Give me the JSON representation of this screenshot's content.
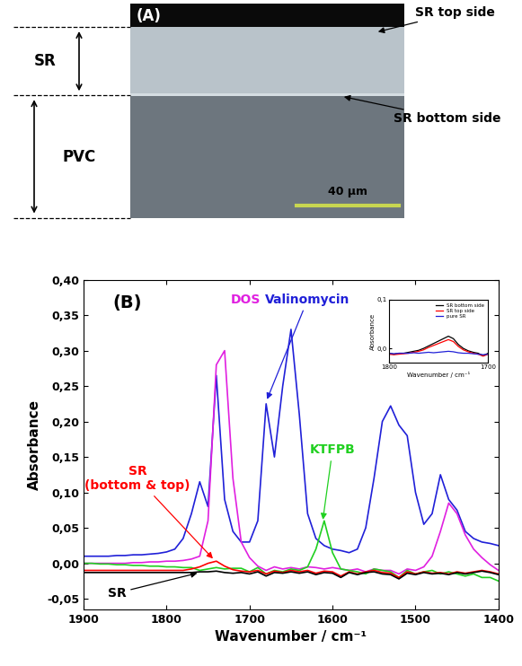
{
  "panel_a": {
    "label": "(A)",
    "layers": [
      "SR",
      "PVC"
    ],
    "callouts": [
      "SR top side",
      "SR bottom side"
    ],
    "scale_bar": "40 µm"
  },
  "chart_data": [
    {
      "type": "line",
      "title": "(B)",
      "x_label": "Wavenumber / cm⁻¹",
      "y_label": "Absorbance",
      "x": [
        1900,
        1890,
        1880,
        1870,
        1860,
        1850,
        1840,
        1830,
        1820,
        1810,
        1800,
        1790,
        1780,
        1770,
        1760,
        1750,
        1740,
        1730,
        1720,
        1710,
        1700,
        1690,
        1680,
        1670,
        1660,
        1650,
        1640,
        1630,
        1620,
        1610,
        1600,
        1590,
        1580,
        1570,
        1560,
        1550,
        1540,
        1530,
        1520,
        1510,
        1500,
        1490,
        1480,
        1470,
        1460,
        1450,
        1440,
        1430,
        1420,
        1410,
        1400
      ],
      "xlim": [
        1900,
        1400
      ],
      "xticks": [
        1900,
        1800,
        1700,
        1600,
        1500,
        1400
      ],
      "ylim": [
        -0.065,
        0.4
      ],
      "yticks": [
        {
          "value": -0.05,
          "label": "-0,05"
        },
        {
          "value": 0.0,
          "label": "0,00"
        },
        {
          "value": 0.05,
          "label": "0,05"
        },
        {
          "value": 0.1,
          "label": "0,10"
        },
        {
          "value": 0.15,
          "label": "0,15"
        },
        {
          "value": 0.2,
          "label": "0,20"
        },
        {
          "value": 0.25,
          "label": "0,25"
        },
        {
          "value": 0.3,
          "label": "0,30"
        },
        {
          "value": 0.35,
          "label": "0,35"
        },
        {
          "value": 0.4,
          "label": "0,40"
        }
      ],
      "series": [
        {
          "name": "Valinomycin",
          "color": "#2020d8",
          "values": [
            0.01,
            0.01,
            0.01,
            0.01,
            0.011,
            0.011,
            0.012,
            0.012,
            0.013,
            0.014,
            0.016,
            0.02,
            0.035,
            0.07,
            0.115,
            0.08,
            0.265,
            0.09,
            0.045,
            0.03,
            0.03,
            0.06,
            0.225,
            0.15,
            0.25,
            0.33,
            0.21,
            0.07,
            0.035,
            0.025,
            0.02,
            0.018,
            0.015,
            0.02,
            0.05,
            0.12,
            0.2,
            0.222,
            0.195,
            0.18,
            0.1,
            0.055,
            0.07,
            0.125,
            0.09,
            0.075,
            0.045,
            0.035,
            0.03,
            0.028,
            0.025
          ]
        },
        {
          "name": "DOS",
          "color": "#e020e0",
          "values": [
            0.0,
            0.0,
            0.0,
            0.0,
            0.0,
            0.0,
            0.001,
            0.001,
            0.002,
            0.002,
            0.003,
            0.003,
            0.004,
            0.006,
            0.01,
            0.06,
            0.28,
            0.3,
            0.12,
            0.03,
            0.008,
            -0.004,
            -0.01,
            -0.005,
            -0.008,
            -0.006,
            -0.008,
            -0.005,
            -0.006,
            -0.008,
            -0.006,
            -0.008,
            -0.01,
            -0.008,
            -0.012,
            -0.008,
            -0.01,
            -0.01,
            -0.015,
            -0.008,
            -0.01,
            -0.005,
            0.01,
            0.045,
            0.085,
            0.07,
            0.04,
            0.02,
            0.008,
            -0.002,
            -0.01
          ]
        },
        {
          "name": "KTFPB",
          "color": "#20d020",
          "values": [
            0.0,
            0.0,
            -0.001,
            -0.001,
            -0.002,
            -0.002,
            -0.003,
            -0.003,
            -0.004,
            -0.004,
            -0.005,
            -0.005,
            -0.006,
            -0.006,
            -0.01,
            -0.008,
            -0.006,
            -0.008,
            -0.007,
            -0.007,
            -0.012,
            -0.006,
            -0.015,
            -0.01,
            -0.012,
            -0.008,
            -0.01,
            -0.005,
            0.02,
            0.06,
            0.015,
            -0.008,
            -0.01,
            -0.012,
            -0.015,
            -0.008,
            -0.01,
            -0.012,
            -0.02,
            -0.01,
            -0.015,
            -0.012,
            -0.01,
            -0.015,
            -0.012,
            -0.015,
            -0.018,
            -0.015,
            -0.02,
            -0.02,
            -0.025
          ]
        },
        {
          "name": "SR\n(bottom & top)",
          "color": "#ff0000",
          "values": [
            -0.01,
            -0.01,
            -0.01,
            -0.01,
            -0.01,
            -0.01,
            -0.01,
            -0.01,
            -0.01,
            -0.01,
            -0.01,
            -0.01,
            -0.01,
            -0.008,
            -0.005,
            0.0,
            0.003,
            -0.004,
            -0.009,
            -0.011,
            -0.012,
            -0.01,
            -0.015,
            -0.011,
            -0.013,
            -0.01,
            -0.012,
            -0.01,
            -0.014,
            -0.011,
            -0.012,
            -0.018,
            -0.012,
            -0.015,
            -0.012,
            -0.01,
            -0.013,
            -0.014,
            -0.02,
            -0.012,
            -0.015,
            -0.012,
            -0.014,
            -0.013,
            -0.015,
            -0.012,
            -0.014,
            -0.012,
            -0.01,
            -0.012,
            -0.015
          ]
        },
        {
          "name": "SR",
          "color": "#000000",
          "values": [
            -0.013,
            -0.013,
            -0.013,
            -0.013,
            -0.013,
            -0.013,
            -0.013,
            -0.013,
            -0.013,
            -0.013,
            -0.013,
            -0.013,
            -0.013,
            -0.013,
            -0.012,
            -0.012,
            -0.011,
            -0.013,
            -0.014,
            -0.013,
            -0.015,
            -0.012,
            -0.018,
            -0.013,
            -0.014,
            -0.012,
            -0.014,
            -0.012,
            -0.016,
            -0.013,
            -0.014,
            -0.02,
            -0.013,
            -0.016,
            -0.013,
            -0.012,
            -0.015,
            -0.016,
            -0.022,
            -0.014,
            -0.016,
            -0.013,
            -0.015,
            -0.014,
            -0.016,
            -0.013,
            -0.015,
            -0.013,
            -0.011,
            -0.013,
            -0.016
          ]
        }
      ]
    },
    {
      "type": "line",
      "x_label": "Wavenumber / cm⁻¹",
      "y_label": "Absorbance",
      "x": [
        1800,
        1795,
        1790,
        1785,
        1780,
        1775,
        1770,
        1765,
        1760,
        1755,
        1750,
        1745,
        1740,
        1735,
        1730,
        1725,
        1720,
        1715,
        1710,
        1705,
        1700
      ],
      "xlim": [
        1800,
        1700
      ],
      "xticks": [
        1800,
        1700
      ],
      "ylim": [
        -0.03,
        0.1
      ],
      "yticks": [
        {
          "value": 0.0,
          "label": "0,0"
        },
        {
          "value": 0.1,
          "label": "0,1"
        }
      ],
      "legend": "upper right",
      "series": [
        {
          "name": "SR bottom side",
          "color": "#000000",
          "values": [
            -0.01,
            -0.012,
            -0.01,
            -0.01,
            -0.008,
            -0.006,
            -0.004,
            0.0,
            0.005,
            0.01,
            0.015,
            0.02,
            0.025,
            0.02,
            0.008,
            0.0,
            -0.005,
            -0.008,
            -0.01,
            -0.015,
            -0.01
          ]
        },
        {
          "name": "SR top side",
          "color": "#ff0000",
          "values": [
            -0.012,
            -0.013,
            -0.012,
            -0.011,
            -0.01,
            -0.008,
            -0.006,
            -0.003,
            0.002,
            0.006,
            0.01,
            0.014,
            0.018,
            0.014,
            0.004,
            -0.003,
            -0.007,
            -0.01,
            -0.012,
            -0.016,
            -0.012
          ]
        },
        {
          "name": "pure SR",
          "color": "#2020d8",
          "values": [
            -0.01,
            -0.011,
            -0.01,
            -0.01,
            -0.01,
            -0.009,
            -0.01,
            -0.009,
            -0.008,
            -0.009,
            -0.008,
            -0.007,
            -0.006,
            -0.007,
            -0.009,
            -0.01,
            -0.01,
            -0.011,
            -0.012,
            -0.013,
            -0.012
          ]
        }
      ]
    }
  ]
}
